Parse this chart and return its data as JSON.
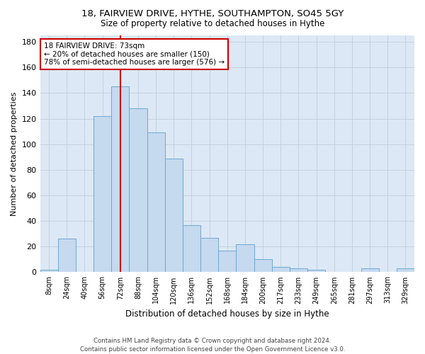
{
  "title_line1": "18, FAIRVIEW DRIVE, HYTHE, SOUTHAMPTON, SO45 5GY",
  "title_line2": "Size of property relative to detached houses in Hythe",
  "xlabel": "Distribution of detached houses by size in Hythe",
  "ylabel": "Number of detached properties",
  "bar_labels": [
    "8sqm",
    "24sqm",
    "40sqm",
    "56sqm",
    "72sqm",
    "88sqm",
    "104sqm",
    "120sqm",
    "136sqm",
    "152sqm",
    "168sqm",
    "184sqm",
    "200sqm",
    "217sqm",
    "233sqm",
    "249sqm",
    "265sqm",
    "281sqm",
    "297sqm",
    "313sqm",
    "329sqm"
  ],
  "bar_values": [
    2,
    26,
    0,
    122,
    145,
    128,
    109,
    89,
    37,
    27,
    17,
    22,
    10,
    4,
    3,
    2,
    0,
    0,
    3,
    0,
    3
  ],
  "bar_color": "#c5d9ef",
  "bar_edge_color": "#6fa8d0",
  "vline_x": 4,
  "vline_color": "#cc0000",
  "ylim": [
    0,
    185
  ],
  "yticks": [
    0,
    20,
    40,
    60,
    80,
    100,
    120,
    140,
    160,
    180
  ],
  "axes_bg_color": "#dce8f5",
  "background_color": "#ffffff",
  "grid_color": "#c0ccd8",
  "annotation_text": "18 FAIRVIEW DRIVE: 73sqm\n← 20% of detached houses are smaller (150)\n78% of semi-detached houses are larger (576) →",
  "annotation_box_color": "#ffffff",
  "annotation_box_edge": "#cc0000",
  "footer_line1": "Contains HM Land Registry data © Crown copyright and database right 2024.",
  "footer_line2": "Contains public sector information licensed under the Open Government Licence v3.0."
}
